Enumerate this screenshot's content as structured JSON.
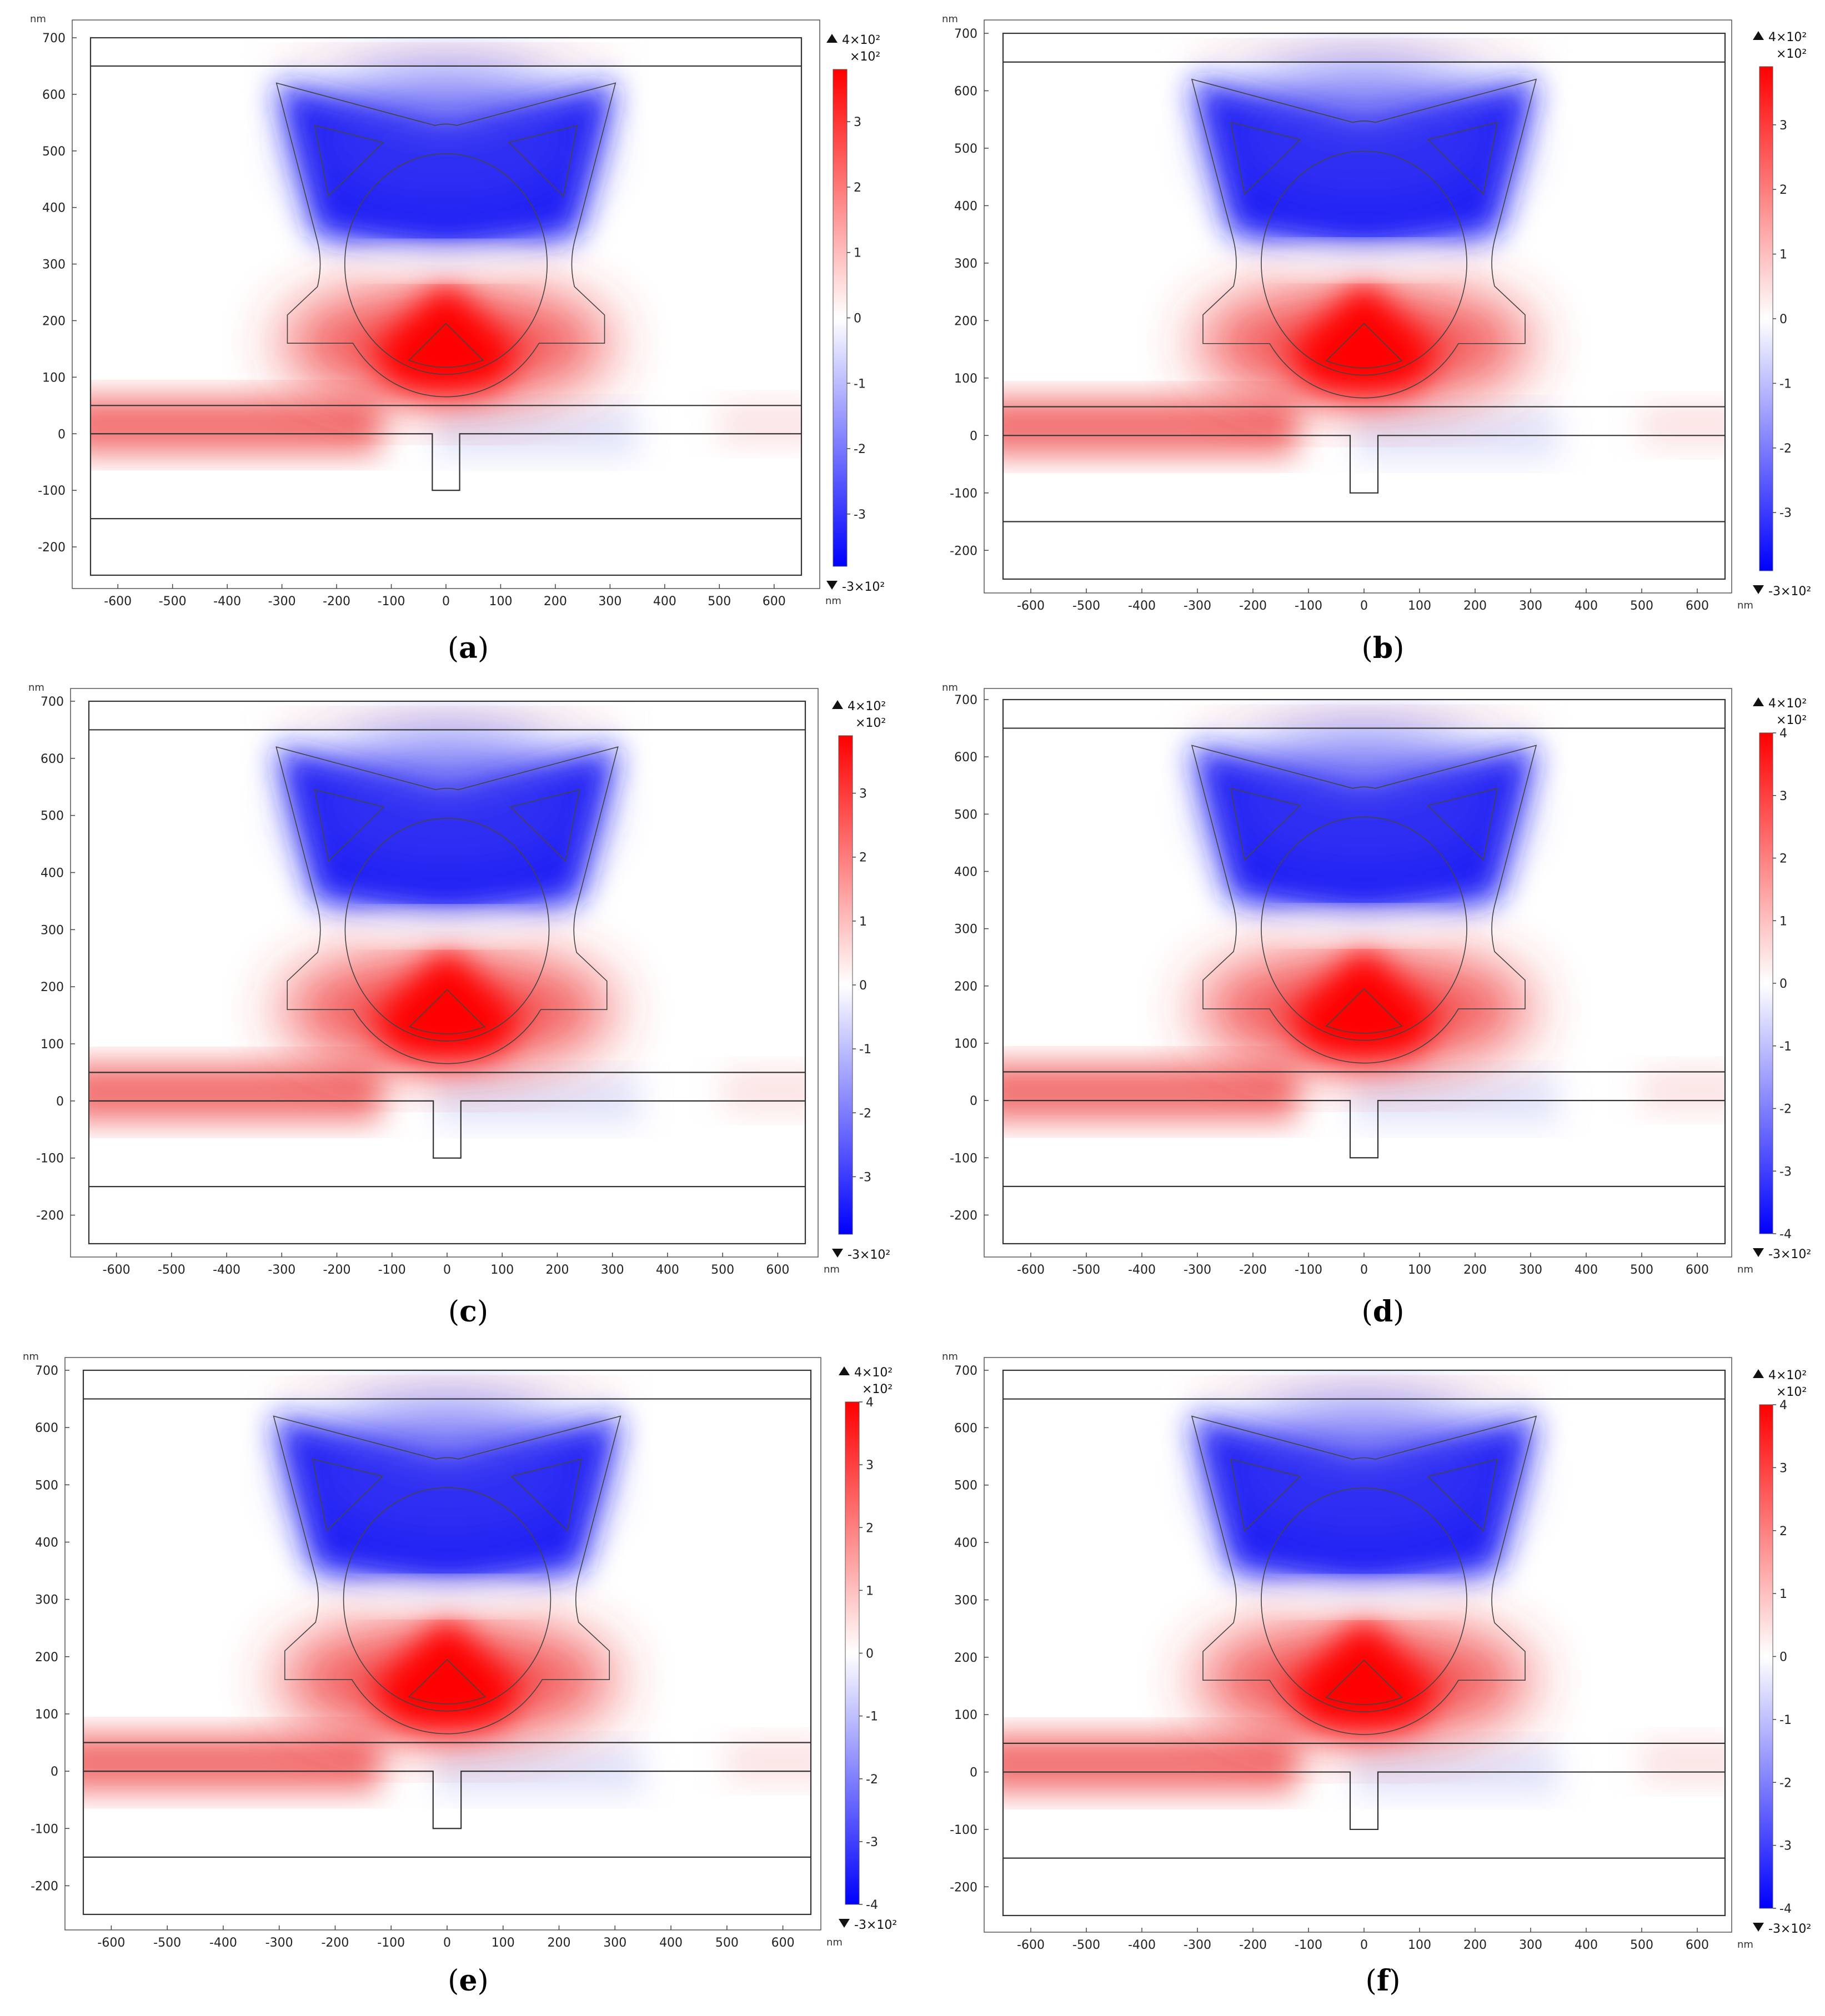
{
  "chart_data": [
    {
      "panel": "a",
      "type": "heatmap",
      "caption": "a",
      "x_unit": "nm",
      "y_unit": "nm",
      "xlim": [
        -680,
        680
      ],
      "ylim": [
        -280,
        760
      ],
      "x_ticks": [
        -600,
        -500,
        -400,
        -300,
        -200,
        -100,
        0,
        100,
        200,
        300,
        400,
        500,
        600
      ],
      "y_ticks": [
        -200,
        -100,
        0,
        100,
        200,
        300,
        400,
        500,
        600,
        700
      ],
      "colorbar": {
        "max_label": "4×10²",
        "min_label": "-3×10²",
        "scale_label": "×10²",
        "max": 3.8,
        "min": -3.8,
        "ticks": [
          3,
          2,
          1,
          0,
          -1,
          -2,
          -3
        ],
        "colors": [
          "#ff0000",
          "#ffffff",
          "#0000ff"
        ]
      }
    },
    {
      "panel": "b",
      "type": "heatmap",
      "caption": "b",
      "x_unit": "nm",
      "y_unit": "nm",
      "xlim": [
        -680,
        680
      ],
      "ylim": [
        -280,
        760
      ],
      "x_ticks": [
        -600,
        -500,
        -400,
        -300,
        -200,
        -100,
        0,
        100,
        200,
        300,
        400,
        500,
        600
      ],
      "y_ticks": [
        -200,
        -100,
        0,
        100,
        200,
        300,
        400,
        500,
        600,
        700
      ],
      "colorbar": {
        "max_label": "4×10²",
        "min_label": "-3×10²",
        "scale_label": "×10²",
        "max": 3.9,
        "min": -3.9,
        "ticks": [
          3,
          2,
          1,
          0,
          -1,
          -2,
          -3
        ],
        "colors": [
          "#ff0000",
          "#ffffff",
          "#0000ff"
        ]
      }
    },
    {
      "panel": "c",
      "type": "heatmap",
      "caption": "c",
      "x_unit": "nm",
      "y_unit": "nm",
      "xlim": [
        -680,
        680
      ],
      "ylim": [
        -280,
        760
      ],
      "x_ticks": [
        -600,
        -500,
        -400,
        -300,
        -200,
        -100,
        0,
        100,
        200,
        300,
        400,
        500,
        600
      ],
      "y_ticks": [
        -200,
        -100,
        0,
        100,
        200,
        300,
        400,
        500,
        600,
        700
      ],
      "colorbar": {
        "max_label": "4×10²",
        "min_label": "-3×10²",
        "scale_label": "×10²",
        "max": 3.9,
        "min": -3.9,
        "ticks": [
          3,
          2,
          1,
          0,
          -1,
          -2,
          -3
        ],
        "colors": [
          "#ff0000",
          "#ffffff",
          "#0000ff"
        ]
      }
    },
    {
      "panel": "d",
      "type": "heatmap",
      "caption": "d",
      "x_unit": "nm",
      "y_unit": "nm",
      "xlim": [
        -680,
        680
      ],
      "ylim": [
        -280,
        760
      ],
      "x_ticks": [
        -600,
        -500,
        -400,
        -300,
        -200,
        -100,
        0,
        100,
        200,
        300,
        400,
        500,
        600
      ],
      "y_ticks": [
        -200,
        -100,
        0,
        100,
        200,
        300,
        400,
        500,
        600,
        700
      ],
      "colorbar": {
        "max_label": "4×10²",
        "min_label": "-3×10²",
        "scale_label": "×10²",
        "max": 4.0,
        "min": -4.0,
        "ticks": [
          4,
          3,
          2,
          1,
          0,
          -1,
          -2,
          -3,
          -4
        ],
        "colors": [
          "#ff0000",
          "#ffffff",
          "#0000ff"
        ]
      }
    },
    {
      "panel": "e",
      "type": "heatmap",
      "caption": "e",
      "x_unit": "nm",
      "y_unit": "nm",
      "xlim": [
        -680,
        680
      ],
      "ylim": [
        -280,
        760
      ],
      "x_ticks": [
        -600,
        -500,
        -400,
        -300,
        -200,
        -100,
        0,
        100,
        200,
        300,
        400,
        500,
        600
      ],
      "y_ticks": [
        -200,
        -100,
        0,
        100,
        200,
        300,
        400,
        500,
        600,
        700
      ],
      "colorbar": {
        "max_label": "4×10²",
        "min_label": "-3×10²",
        "scale_label": "×10²",
        "max": 4.0,
        "min": -4.0,
        "ticks": [
          4,
          3,
          2,
          1,
          0,
          -1,
          -2,
          -3,
          -4
        ],
        "colors": [
          "#ff0000",
          "#ffffff",
          "#0000ff"
        ]
      }
    },
    {
      "panel": "f",
      "type": "heatmap",
      "caption": "f",
      "x_unit": "nm",
      "y_unit": "nm",
      "xlim": [
        -680,
        680
      ],
      "ylim": [
        -280,
        760
      ],
      "x_ticks": [
        -600,
        -500,
        -400,
        -300,
        -200,
        -100,
        0,
        100,
        200,
        300,
        400,
        500,
        600
      ],
      "y_ticks": [
        -200,
        -100,
        0,
        100,
        200,
        300,
        400,
        500,
        600,
        700
      ],
      "colorbar": {
        "max_label": "4×10²",
        "min_label": "-3×10²",
        "scale_label": "×10²",
        "max": 4.0,
        "min": -4.0,
        "ticks": [
          4,
          3,
          2,
          1,
          0,
          -1,
          -2,
          -3,
          -4
        ],
        "colors": [
          "#ff0000",
          "#ffffff",
          "#0000ff"
        ]
      }
    }
  ]
}
